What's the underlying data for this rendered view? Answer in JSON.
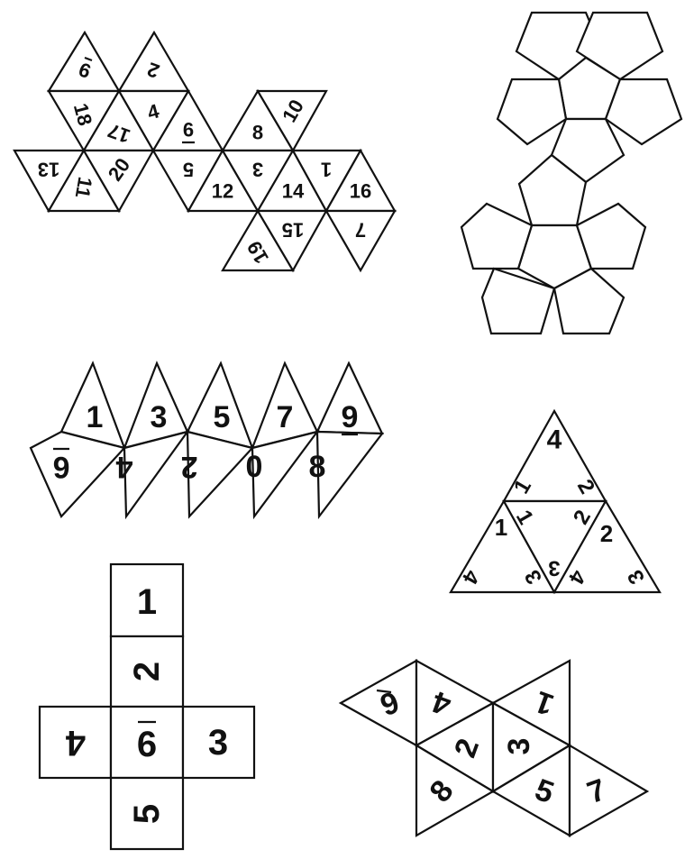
{
  "d20_net": {
    "labels": [
      "9",
      "2",
      "18",
      "4",
      "6",
      "8",
      "10",
      "13",
      "11",
      "20",
      "5",
      "3",
      "12",
      "14",
      "1",
      "16",
      "19",
      "17",
      "15",
      "7"
    ],
    "underlined": [
      "9",
      "6"
    ]
  },
  "d12_net": {
    "face_count": 12
  },
  "d10_net": {
    "top": [
      "1",
      "3",
      "5",
      "7",
      "9"
    ],
    "bottom": [
      "6",
      "4",
      "2",
      "0",
      "8"
    ],
    "underlined": [
      "9",
      "6"
    ]
  },
  "d4_net": {
    "labels": [
      "4",
      "1",
      "2",
      "1",
      "2",
      "3",
      "2",
      "4",
      "3",
      "4",
      "3",
      "1"
    ]
  },
  "d6_net": {
    "labels": [
      "1",
      "2",
      "4",
      "6",
      "3",
      "5"
    ],
    "underlined": [
      "6"
    ]
  },
  "d8_net": {
    "labels": [
      "6",
      "4",
      "1",
      "2",
      "3",
      "8",
      "5",
      "7"
    ],
    "underlined": [
      "6"
    ]
  },
  "colors": {
    "line": "#111111",
    "background": "#ffffff"
  }
}
